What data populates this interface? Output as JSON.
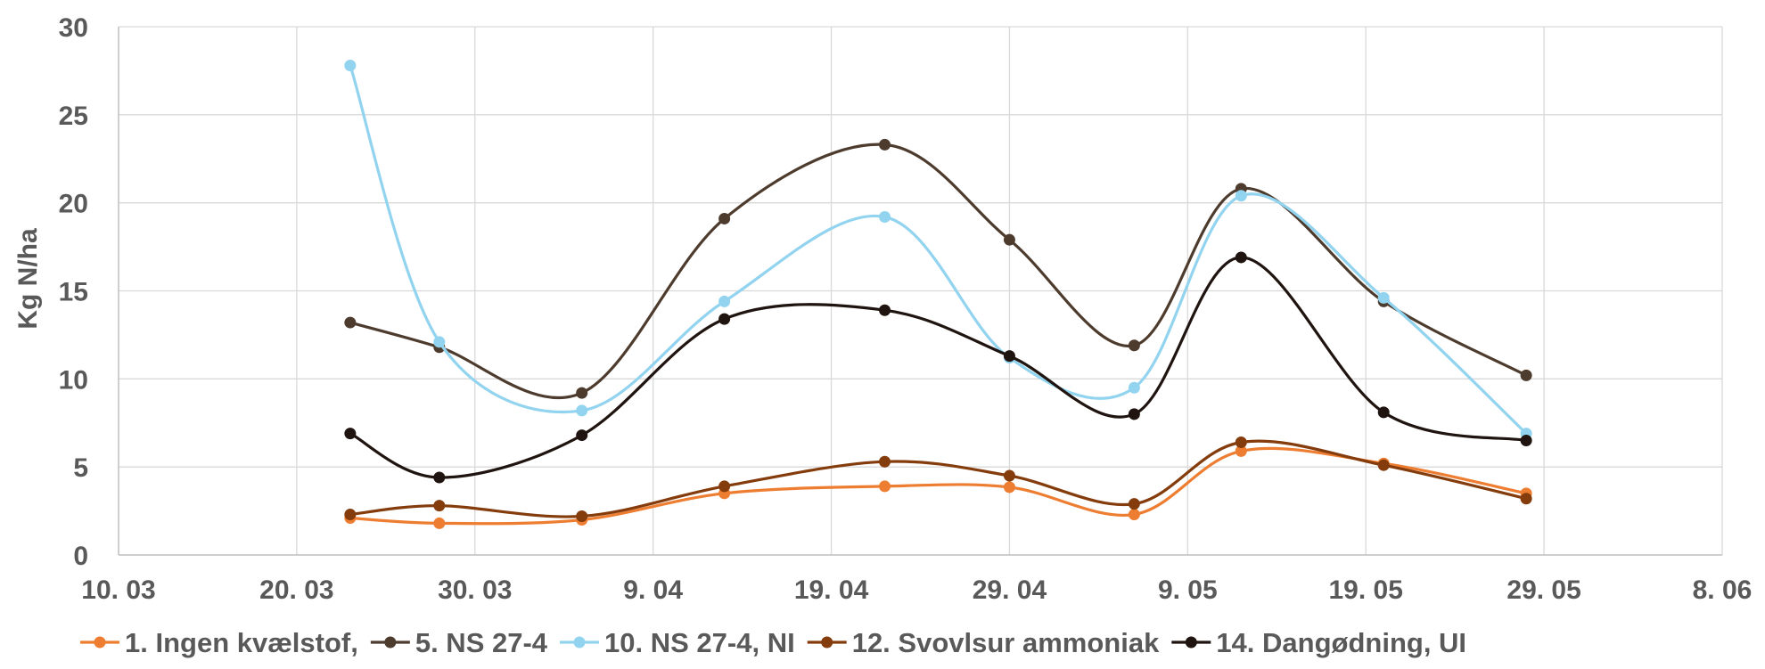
{
  "chart_data": {
    "type": "line",
    "title": "",
    "xlabel": "",
    "ylabel": "Kg N/ha",
    "ylim": [
      0,
      30
    ],
    "y_ticks": [
      0,
      5,
      10,
      15,
      20,
      25,
      30
    ],
    "xlim": [
      "2024-03-10",
      "2024-06-08"
    ],
    "x_ticks": [
      {
        "date": "2024-03-10",
        "label": "10. 03"
      },
      {
        "date": "2024-03-20",
        "label": "20. 03"
      },
      {
        "date": "2024-03-30",
        "label": "30. 03"
      },
      {
        "date": "2024-04-09",
        "label": "9. 04"
      },
      {
        "date": "2024-04-19",
        "label": "19. 04"
      },
      {
        "date": "2024-04-29",
        "label": "29. 04"
      },
      {
        "date": "2024-05-09",
        "label": "9. 05"
      },
      {
        "date": "2024-05-19",
        "label": "19. 05"
      },
      {
        "date": "2024-05-29",
        "label": "29. 05"
      },
      {
        "date": "2024-06-08",
        "label": "8. 06"
      }
    ],
    "grid": true,
    "legend_position": "bottom",
    "x": [
      "2024-03-23",
      "2024-03-28",
      "2024-04-05",
      "2024-04-13",
      "2024-04-22",
      "2024-04-29",
      "2024-05-06",
      "2024-05-12",
      "2024-05-20",
      "2024-05-28"
    ],
    "series": [
      {
        "name": "1. Ingen kvælstof,",
        "color": "#ed7d31",
        "values": [
          2.1,
          1.8,
          2.0,
          3.5,
          3.9,
          3.85,
          2.3,
          5.9,
          5.2,
          3.5
        ]
      },
      {
        "name": "5. NS 27-4",
        "color": "#4d3b2e",
        "values": [
          13.2,
          11.8,
          9.2,
          19.1,
          23.3,
          17.9,
          11.9,
          20.8,
          14.4,
          10.2
        ]
      },
      {
        "name": "10.  NS 27-4, NI",
        "color": "#92d4ef",
        "values": [
          27.8,
          12.1,
          8.2,
          14.4,
          19.2,
          11.2,
          9.5,
          20.4,
          14.6,
          6.9
        ]
      },
      {
        "name": "12. Svovlsur ammoniak",
        "color": "#843c0c",
        "values": [
          2.3,
          2.8,
          2.2,
          3.9,
          5.3,
          4.5,
          2.9,
          6.4,
          5.1,
          3.2
        ]
      },
      {
        "name": "14. Dangødning, UI",
        "color": "#1f140f",
        "values": [
          6.9,
          4.4,
          6.8,
          13.4,
          13.9,
          11.3,
          8.0,
          16.9,
          8.1,
          6.5
        ]
      }
    ]
  }
}
